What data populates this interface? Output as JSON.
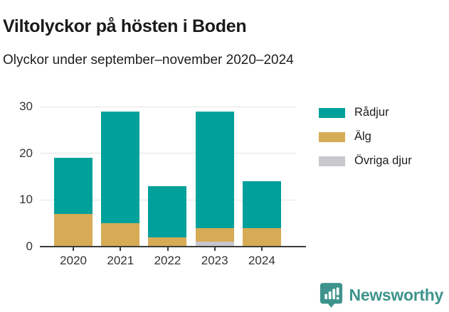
{
  "header": {
    "title": "Viltolyckor på hösten i Boden",
    "subtitle": "Olyckor under september–november 2020–2024"
  },
  "chart_data": {
    "type": "bar",
    "stacked": true,
    "title": "Viltolyckor på hösten i Boden",
    "subtitle": "Olyckor under september–november 2020–2024",
    "categories": [
      "2020",
      "2021",
      "2022",
      "2023",
      "2024"
    ],
    "series": [
      {
        "name": "Rådjur",
        "color": "#00A19A",
        "values": [
          12,
          24,
          11,
          25,
          10
        ]
      },
      {
        "name": "Älg",
        "color": "#D6AB56",
        "values": [
          7,
          5,
          2,
          3,
          4
        ]
      },
      {
        "name": "Övriga djur",
        "color": "#C8C7CC",
        "values": [
          0,
          0,
          0,
          1,
          0
        ]
      }
    ],
    "stack_order_bottom_to_top": [
      "Övriga djur",
      "Älg",
      "Rådjur"
    ],
    "totals": [
      19,
      29,
      13,
      29,
      14
    ],
    "xlabel": "",
    "ylabel": "",
    "ylim": [
      0,
      30
    ],
    "yticks": [
      0,
      10,
      20,
      30
    ],
    "grid": true,
    "legend_position": "right",
    "axis_color": "#3B3B3B",
    "gridline_color": "#E4E4E4",
    "label_color": "#333333"
  },
  "footer": {
    "brand": "Newsworthy",
    "brand_color": "#3E948C"
  }
}
